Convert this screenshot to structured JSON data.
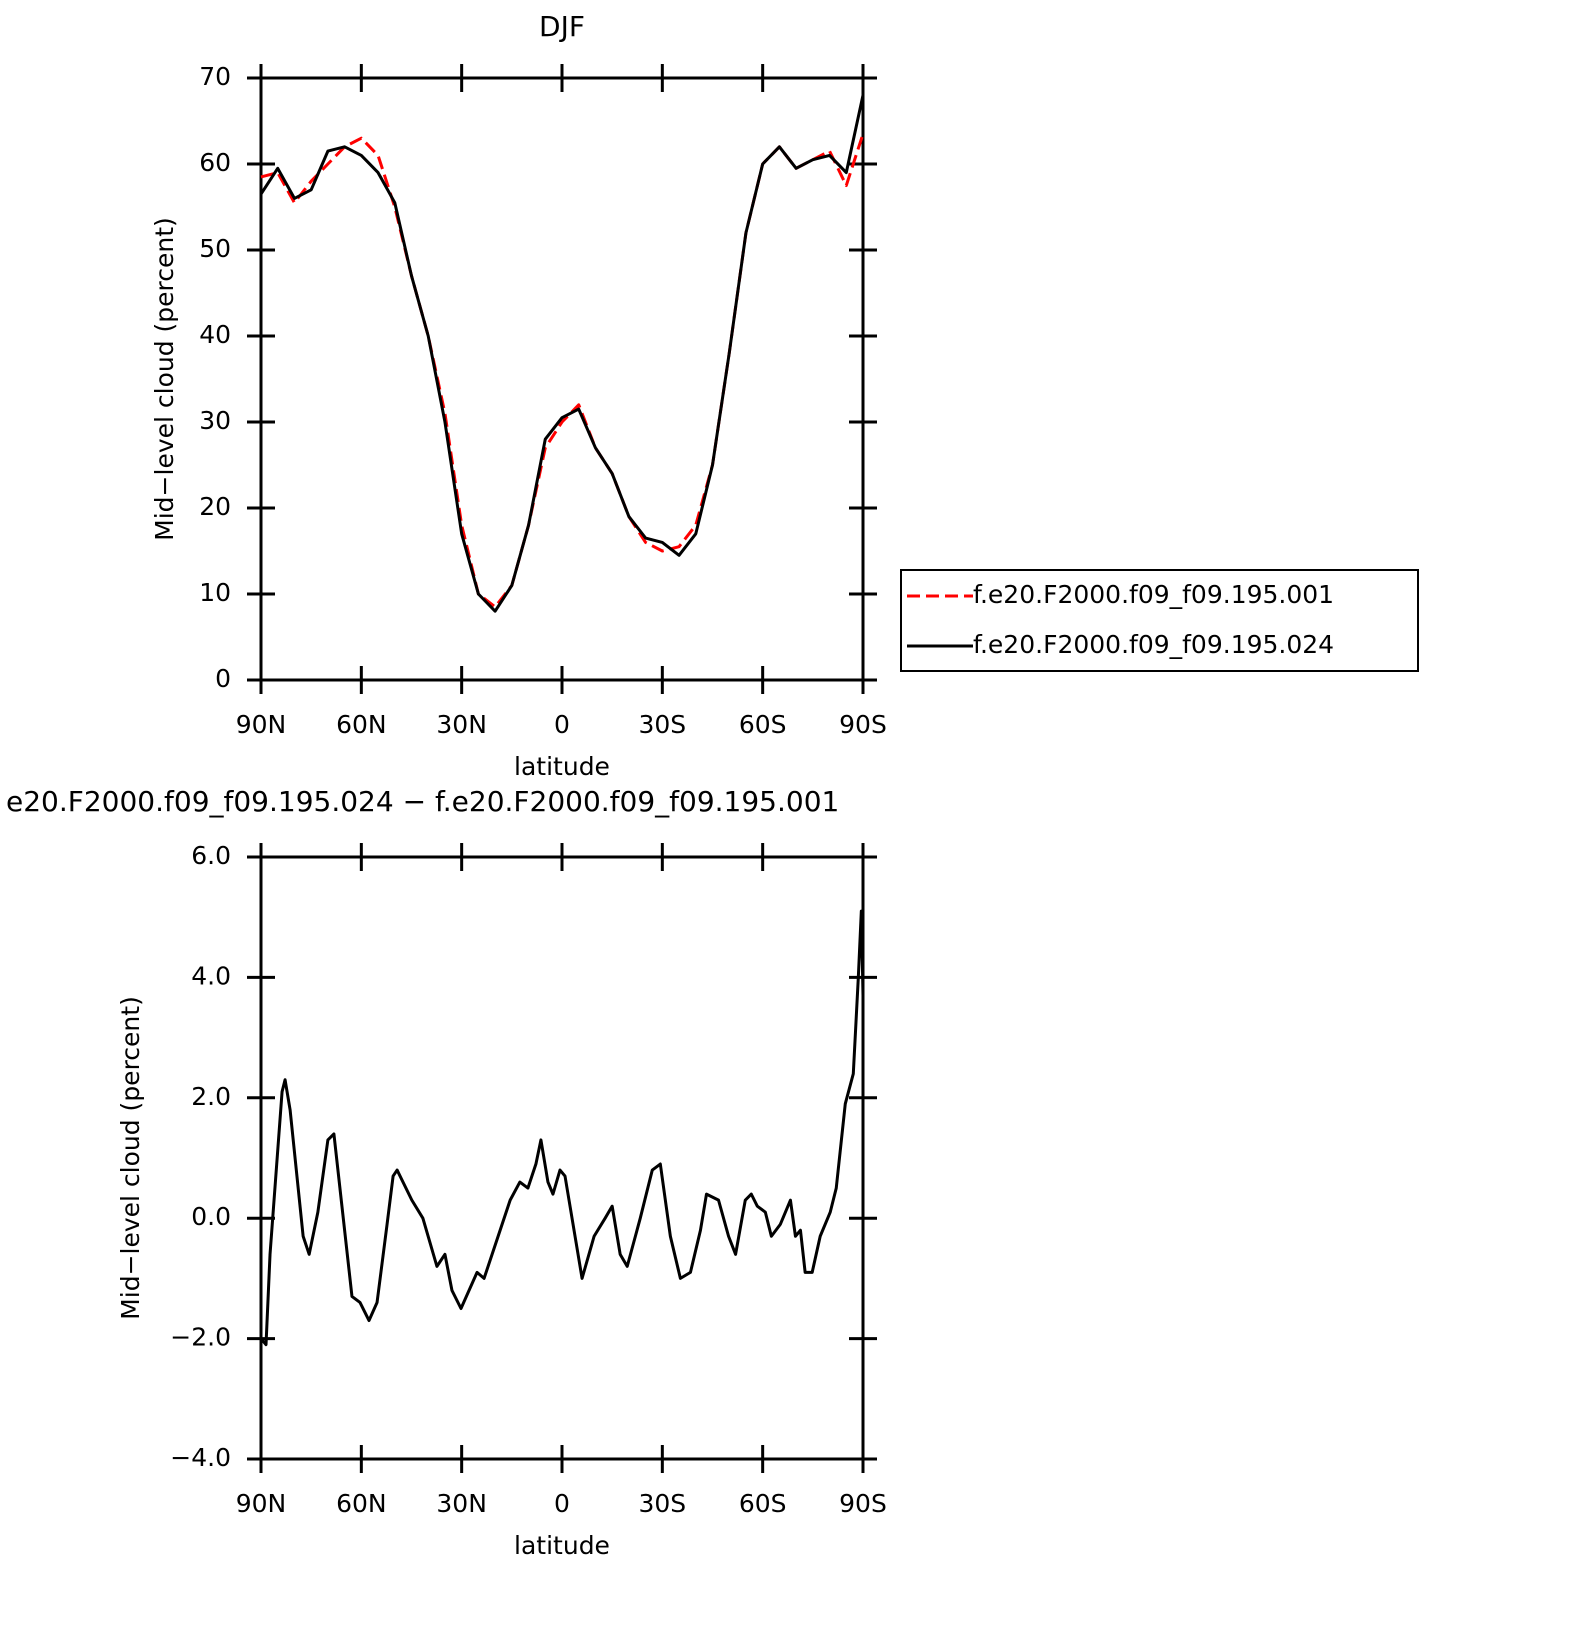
{
  "chart_data": [
    {
      "type": "line",
      "title": "DJF",
      "xlabel": "latitude",
      "ylabel": "Mid−level cloud (percent)",
      "x": [
        90,
        85,
        80,
        75,
        70,
        65,
        60,
        55,
        50,
        45,
        40,
        35,
        30,
        25,
        20,
        15,
        10,
        5,
        0,
        -5,
        -10,
        -15,
        -20,
        -25,
        -30,
        -35,
        -40,
        -45,
        -50,
        -55,
        -60,
        -65,
        -70,
        -75,
        -80,
        -85,
        -90
      ],
      "series": [
        {
          "name": "f.e20.F2000.f09_f09.195.001",
          "color": "#ff0000",
          "dashed": true,
          "values": [
            58.5,
            59,
            55.5,
            58,
            60,
            62,
            63,
            61,
            55,
            47,
            40,
            31,
            18,
            10,
            8.5,
            11,
            18,
            27,
            30,
            32,
            27,
            24,
            19,
            16,
            15,
            15.5,
            18,
            25,
            38,
            52,
            60,
            62,
            59.5,
            60.5,
            61.5,
            57.5,
            63.5
          ]
        },
        {
          "name": "f.e20.F2000.f09_f09.195.024",
          "color": "#000000",
          "dashed": false,
          "values": [
            56.5,
            59.5,
            56,
            57,
            61.5,
            62,
            61,
            59,
            55.5,
            47,
            40,
            30,
            17,
            10,
            8,
            11,
            18,
            28,
            30.5,
            31.5,
            27,
            24,
            19,
            16.5,
            16,
            14.5,
            17,
            25,
            38,
            52,
            60,
            62,
            59.5,
            60.5,
            61,
            59,
            68
          ]
        }
      ],
      "xlim": [
        90,
        -90
      ],
      "xticks": [
        {
          "value": 90,
          "label": "90N"
        },
        {
          "value": 60,
          "label": "60N"
        },
        {
          "value": 30,
          "label": "30N"
        },
        0,
        {
          "value": -30,
          "label": "30S"
        },
        {
          "value": -60,
          "label": "60S"
        },
        {
          "value": -90,
          "label": "90S"
        }
      ],
      "ylim": [
        0,
        70
      ],
      "yticks": [
        0,
        10,
        20,
        30,
        40,
        50,
        60,
        70
      ],
      "legend": "right"
    },
    {
      "type": "line",
      "title": "e20.F2000.f09_f09.195.024 − f.e20.F2000.f09_f09.195.001",
      "xlabel": "latitude",
      "ylabel": "Mid−level cloud (percent)",
      "x": [
        90,
        88.5,
        87.3,
        83.7,
        82.8,
        81.3,
        77.4,
        75.6,
        73.0,
        70.0,
        68.2,
        65.8,
        62.8,
        60.4,
        57.7,
        55.3,
        52.3,
        50.5,
        49.3,
        44.9,
        41.6,
        37.4,
        35.0,
        32.9,
        30.2,
        25.4,
        23.3,
        18.5,
        15.5,
        12.6,
        10.2,
        7.8,
        6.3,
        4.2,
        2.7,
        0.6,
        -0.9,
        -4.2,
        -6.0,
        -9.6,
        -12.9,
        -15.0,
        -17.4,
        -19.5,
        -23.4,
        -27.0,
        -29.4,
        -32.4,
        -35.4,
        -38.4,
        -41.4,
        -43.2,
        -46.8,
        -49.8,
        -51.9,
        -54.8,
        -56.6,
        -58.4,
        -60.8,
        -62.6,
        -65.3,
        -68.3,
        -69.8,
        -71.3,
        -72.7,
        -74.8,
        -77.2,
        -80.2,
        -82.0,
        -84.7,
        -87.1,
        -88.6,
        -89.5,
        -90
      ],
      "series": [
        {
          "color": "#000000",
          "dashed": false,
          "values": [
            -2.0,
            -2.1,
            -0.6,
            2.1,
            2.3,
            1.8,
            -0.3,
            -0.6,
            0.1,
            1.3,
            1.4,
            0.2,
            -1.3,
            -1.4,
            -1.7,
            -1.4,
            -0.1,
            0.7,
            0.8,
            0.3,
            0.0,
            -0.8,
            -0.6,
            -1.2,
            -1.5,
            -0.9,
            -1.0,
            -0.2,
            0.3,
            0.6,
            0.5,
            0.9,
            1.3,
            0.6,
            0.4,
            0.8,
            0.7,
            -0.4,
            -1.0,
            -0.3,
            0.0,
            0.2,
            -0.6,
            -0.8,
            0.0,
            0.8,
            0.9,
            -0.3,
            -1.0,
            -0.9,
            -0.2,
            0.4,
            0.3,
            -0.3,
            -0.6,
            0.3,
            0.4,
            0.2,
            0.1,
            -0.3,
            -0.1,
            0.3,
            -0.3,
            -0.2,
            -0.9,
            -0.9,
            -0.3,
            0.1,
            0.5,
            1.9,
            2.4,
            4.0,
            5.1,
            3.7
          ]
        }
      ],
      "xlim": [
        90,
        -90
      ],
      "xticks": [
        {
          "value": 90,
          "label": "90N"
        },
        {
          "value": 60,
          "label": "60N"
        },
        {
          "value": 30,
          "label": "30N"
        },
        0,
        {
          "value": -30,
          "label": "30S"
        },
        {
          "value": -60,
          "label": "60S"
        },
        {
          "value": -90,
          "label": "90S"
        }
      ],
      "ylim": [
        -4,
        6
      ],
      "yticks": [
        {
          "value": -4,
          "label": "−4.0"
        },
        {
          "value": -2,
          "label": "−2.0"
        },
        {
          "value": 0,
          "label": "0.0"
        },
        {
          "value": 2,
          "label": "2.0"
        },
        {
          "value": 4,
          "label": "4.0"
        },
        {
          "value": 6,
          "label": "6.0"
        }
      ]
    }
  ]
}
